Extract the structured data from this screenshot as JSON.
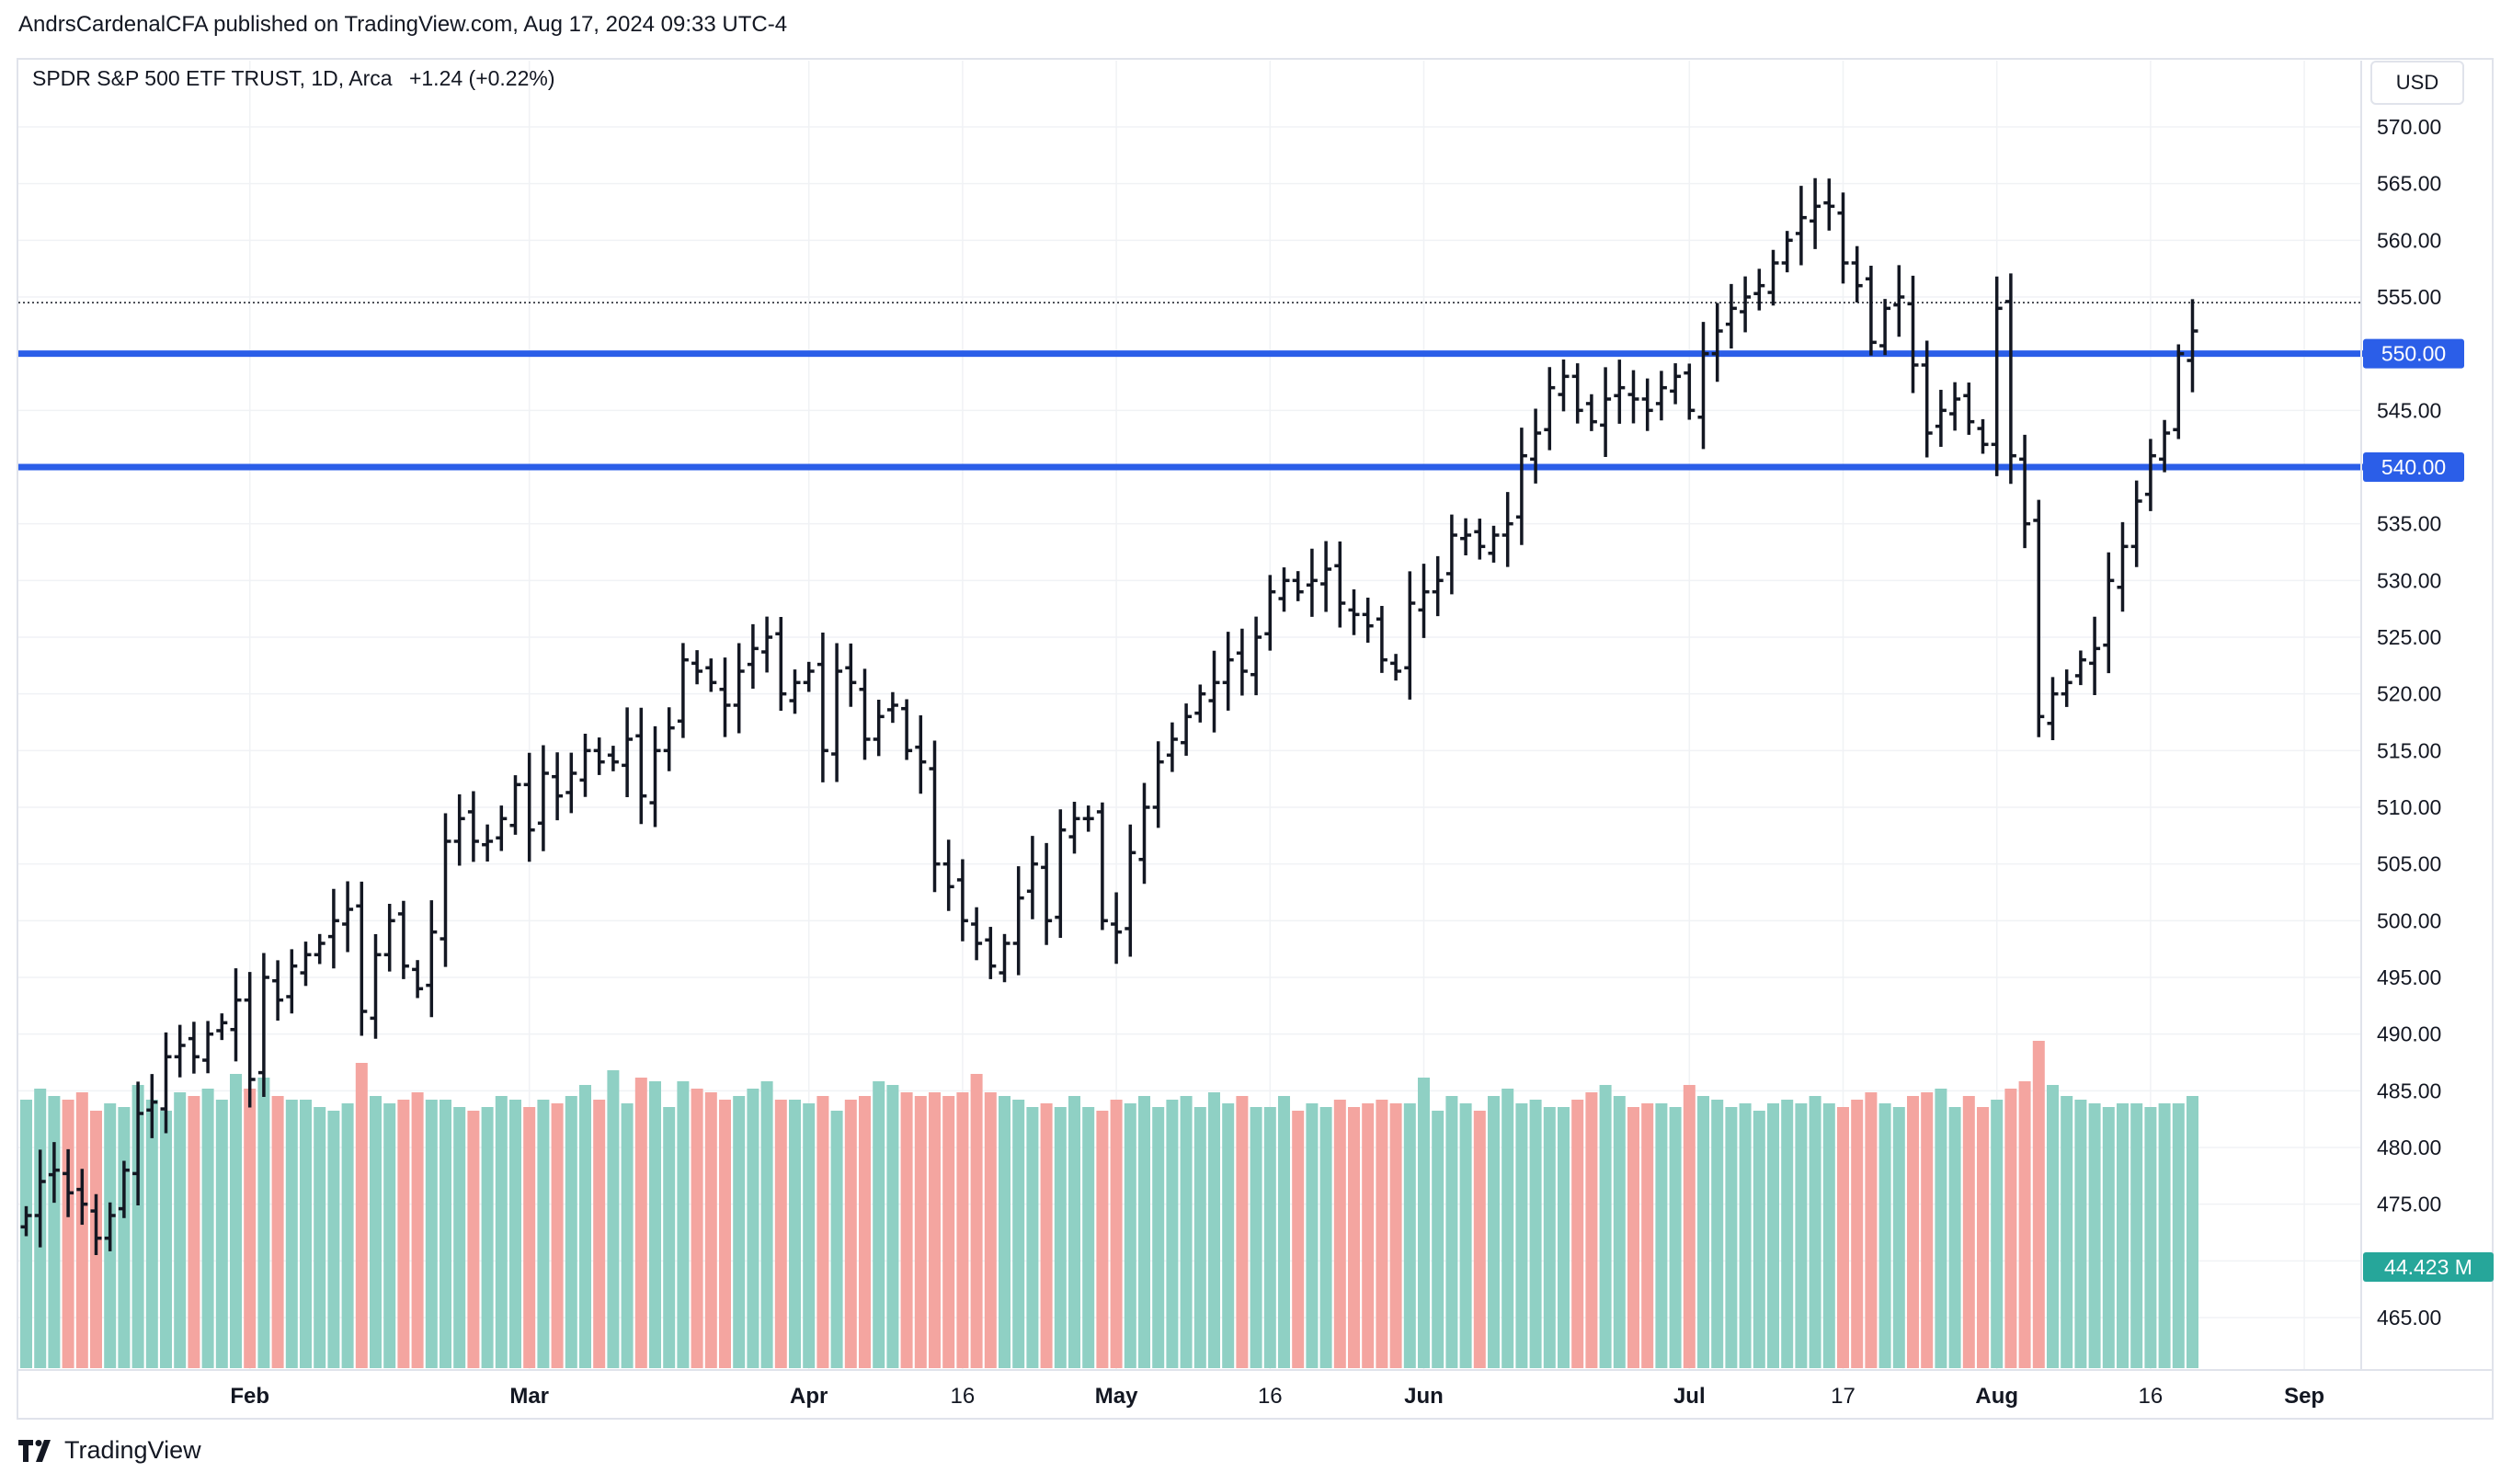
{
  "header": {
    "publisher_line": "AndrsCardenalCFA published on TradingView.com, Aug 17, 2024 09:33 UTC-4"
  },
  "legend": {
    "symbol": "SPDR S&P 500 ETF TRUST, 1D, Arca",
    "change": "+1.24 (+0.22%)"
  },
  "currency_button": "USD",
  "footer": {
    "brand": "TradingView"
  },
  "colors": {
    "bar": "#131722",
    "vol_up": "#8fd0c4",
    "vol_down": "#f4a5a0",
    "hline": "#2b5ee8",
    "volume_label_bg": "#26a69a",
    "grid": "#f0f2f5"
  },
  "chart_data": {
    "type": "ohlc-bar",
    "title": "SPDR S&P 500 ETF TRUST, 1D, Arca",
    "ylim": [
      460,
      573
    ],
    "y_ticks": [
      "570.00",
      "565.00",
      "560.00",
      "555.00",
      "550.00",
      "545.00",
      "540.00",
      "535.00",
      "530.00",
      "525.00",
      "520.00",
      "515.00",
      "510.00",
      "505.00",
      "500.00",
      "495.00",
      "490.00",
      "485.00",
      "480.00",
      "475.00",
      "470.00",
      "465.00"
    ],
    "x_ticks": [
      {
        "label": "Feb",
        "index": 16
      },
      {
        "label": "Mar",
        "index": 36
      },
      {
        "label": "Apr",
        "index": 56
      },
      {
        "label": "16",
        "index": 67
      },
      {
        "label": "May",
        "index": 78
      },
      {
        "label": "16",
        "index": 89
      },
      {
        "label": "Jun",
        "index": 100
      },
      {
        "label": "Jul",
        "index": 119
      },
      {
        "label": "17",
        "index": 130
      },
      {
        "label": "Aug",
        "index": 141
      },
      {
        "label": "16",
        "index": 152
      },
      {
        "label": "Sep",
        "index": 163
      }
    ],
    "horizontal_lines": [
      {
        "value": 550.0,
        "label": "550.00"
      },
      {
        "value": 540.0,
        "label": "540.00"
      }
    ],
    "last_price": 554.5,
    "volume_label": "44.423 M",
    "closes": [
      474,
      477,
      478,
      476,
      475,
      472,
      474,
      478,
      483,
      484,
      488,
      489,
      488,
      490,
      491,
      493,
      486,
      495,
      493,
      496,
      497,
      498,
      500,
      501,
      492,
      497,
      500,
      496,
      494,
      499,
      507,
      509,
      507,
      507,
      509,
      512,
      508,
      513,
      511,
      513,
      515,
      514,
      514,
      516,
      511,
      515,
      517,
      523,
      522,
      521,
      519,
      522,
      524,
      525,
      520,
      521,
      522,
      515,
      522,
      521,
      516,
      518,
      519,
      515,
      514,
      505,
      503,
      500,
      498,
      496,
      498,
      502,
      505,
      500,
      508,
      509,
      509,
      500,
      499,
      506,
      510,
      514,
      516,
      518,
      520,
      521,
      523,
      522,
      525,
      529,
      530,
      529,
      530,
      531,
      528,
      527,
      526,
      523,
      522,
      528,
      529,
      530,
      534,
      534,
      533,
      534,
      535,
      541,
      543,
      547,
      548,
      545,
      544,
      546,
      547,
      546,
      545,
      547,
      548,
      545,
      550,
      552,
      554,
      555,
      556,
      558,
      560,
      562,
      563,
      563,
      558,
      556,
      551,
      554,
      555,
      549,
      543,
      545,
      546,
      544,
      542,
      554,
      541,
      535,
      518,
      520,
      521,
      523,
      524,
      530,
      533,
      537,
      541,
      543,
      550,
      552
    ],
    "volumes": [
      73,
      76,
      74,
      73,
      75,
      70,
      72,
      71,
      77,
      73,
      70,
      75,
      74,
      76,
      73,
      80,
      76,
      79,
      74,
      73,
      73,
      71,
      70,
      72,
      83,
      74,
      72,
      73,
      75,
      73,
      73,
      71,
      70,
      71,
      74,
      73,
      71,
      73,
      72,
      74,
      77,
      73,
      81,
      72,
      79,
      78,
      71,
      78,
      76,
      75,
      73,
      74,
      76,
      78,
      73,
      73,
      72,
      74,
      70,
      73,
      74,
      78,
      77,
      75,
      74,
      75,
      74,
      75,
      80,
      75,
      74,
      73,
      71,
      72,
      71,
      74,
      71,
      70,
      73,
      72,
      74,
      71,
      73,
      74,
      71,
      75,
      72,
      74,
      71,
      71,
      74,
      70,
      72,
      71,
      73,
      71,
      72,
      73,
      72,
      72,
      79,
      70,
      74,
      72,
      70,
      74,
      76,
      72,
      73,
      71,
      71,
      73,
      75,
      77,
      74,
      71,
      72,
      72,
      71,
      77,
      74,
      73,
      71,
      72,
      70,
      72,
      73,
      72,
      74,
      72,
      71,
      73,
      75,
      72,
      71,
      74,
      75,
      76,
      71,
      74,
      71,
      73,
      76,
      78,
      89,
      77,
      74,
      73,
      72,
      71,
      72,
      72,
      71,
      72,
      72,
      74
    ],
    "volume_ylim": [
      0,
      89.5
    ]
  }
}
